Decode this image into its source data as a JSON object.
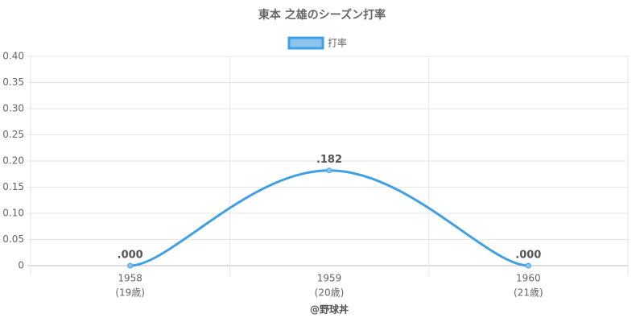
{
  "chart_data": {
    "type": "line",
    "title": "東本 之雄のシーズン打率",
    "categories": [
      "1958",
      "1959",
      "1960"
    ],
    "category_sublabels": [
      "(19歳)",
      "(20歳)",
      "(21歳)"
    ],
    "series": [
      {
        "name": "打率",
        "color": "#3fa0e4",
        "values": [
          0,
          0.182,
          0
        ],
        "value_labels": [
          ".000",
          ".182",
          ".000"
        ]
      }
    ],
    "ylim": [
      0,
      0.4
    ],
    "yticks": [
      0,
      0.05,
      {
        "value": 0.1,
        "label": "0.10"
      },
      0.15,
      {
        "value": 0.2,
        "label": "0.20"
      },
      0.25,
      {
        "value": 0.3,
        "label": "0.30"
      },
      0.35,
      {
        "value": 0.4,
        "label": "0.40"
      }
    ],
    "grid": true,
    "legend": "top",
    "footer": "@野球丼"
  }
}
